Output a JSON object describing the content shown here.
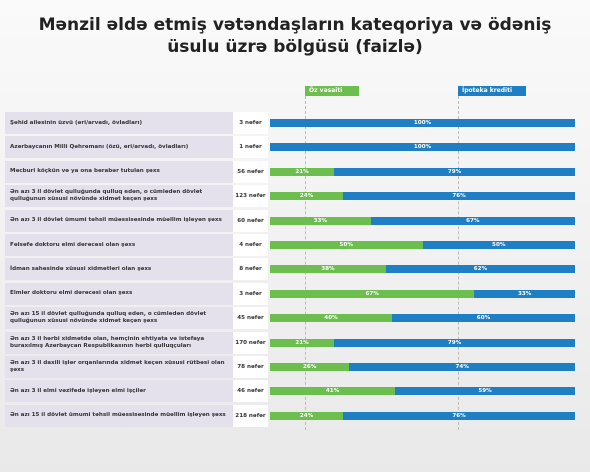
{
  "chart_data": {
    "type": "stacked-bar",
    "title": "Mənzil əldə etmiş vətəndaşların kateqoriya və ödəniş üsulu üzrə bölgüsü (faizlə)",
    "categories": [
      "Şəhid ailəsinin üzvü (əri/arvadı, övladları)",
      "Azərbaycanın Milli Qəhrəmanı (özü, əri/arvadı, övladları)",
      "Məcburi köçkün və ya ona bərabər tutulan şəxs",
      "Ən azı 3 il dövlət qulluğunda qulluq edən, o cümlədən dövlət qulluğunun xüsusi növündə xidmət keçən şəxs",
      "Ən azı 3 il dövlət ümumi təhsil müəssisəsində müəllim işləyən şəxs",
      "Fəlsəfə doktoru elmi dərəcəsi olan şəxs",
      "İdman sahəsində xüsusi xidmətləri olan şəxs",
      "Elmlər doktoru elmi dərəcəsi olan şəxs",
      "Ən azı 15 il dövlət qulluğunda qulluq edən, o cümlədən dövlət qulluğunun xüsusi növündə xidmət keçən şəxs",
      "Ən azı 3 il hərbi xidmətdə olan, həmçinin ehtiyata və istefaya buraxılmış Azərbaycan Respublikasının hərbi qulluqçuları",
      "Ən azı 3 il daxili işlər orqanlarında xidmət keçən xüsusi rütbəsi olan şəxs",
      "Ən azı 3 il elmi vəzifədə işləyən elmi işçilər",
      "Ən azı 15 il dövlət ümumi təhsil müəssisəsində müəllim işləyən şəxs"
    ],
    "counts": [
      "3 nəfər",
      "1 nəfər",
      "56 nəfər",
      "123 nəfər",
      "60 nəfər",
      "4 nəfər",
      "8 nəfər",
      "3 nəfər",
      "45 nəfər",
      "170 nəfər",
      "78 nəfər",
      "46 nəfər",
      "218 nəfər"
    ],
    "xlim": [
      0,
      100
    ],
    "series": [
      {
        "name": "Öz vəsaiti",
        "color": "#6cbf4f",
        "values": [
          0,
          0,
          21,
          24,
          33,
          50,
          38,
          67,
          40,
          21,
          26,
          41,
          24
        ],
        "value_labels": [
          null,
          null,
          "21%",
          "24%",
          "33%",
          "50%",
          "38%",
          "67%",
          "40%",
          "21%",
          "26%",
          "41%",
          "24%"
        ]
      },
      {
        "name": "İpoteka krediti",
        "color": "#1f7fc4",
        "values": [
          100,
          100,
          79,
          76,
          67,
          50,
          62,
          33,
          60,
          79,
          74,
          59,
          76
        ],
        "value_labels": [
          "100%",
          "100%",
          "79%",
          "76%",
          "67%",
          "50%",
          "62%",
          "33%",
          "60%",
          "79%",
          "74%",
          "59%",
          "76%"
        ]
      }
    ]
  }
}
